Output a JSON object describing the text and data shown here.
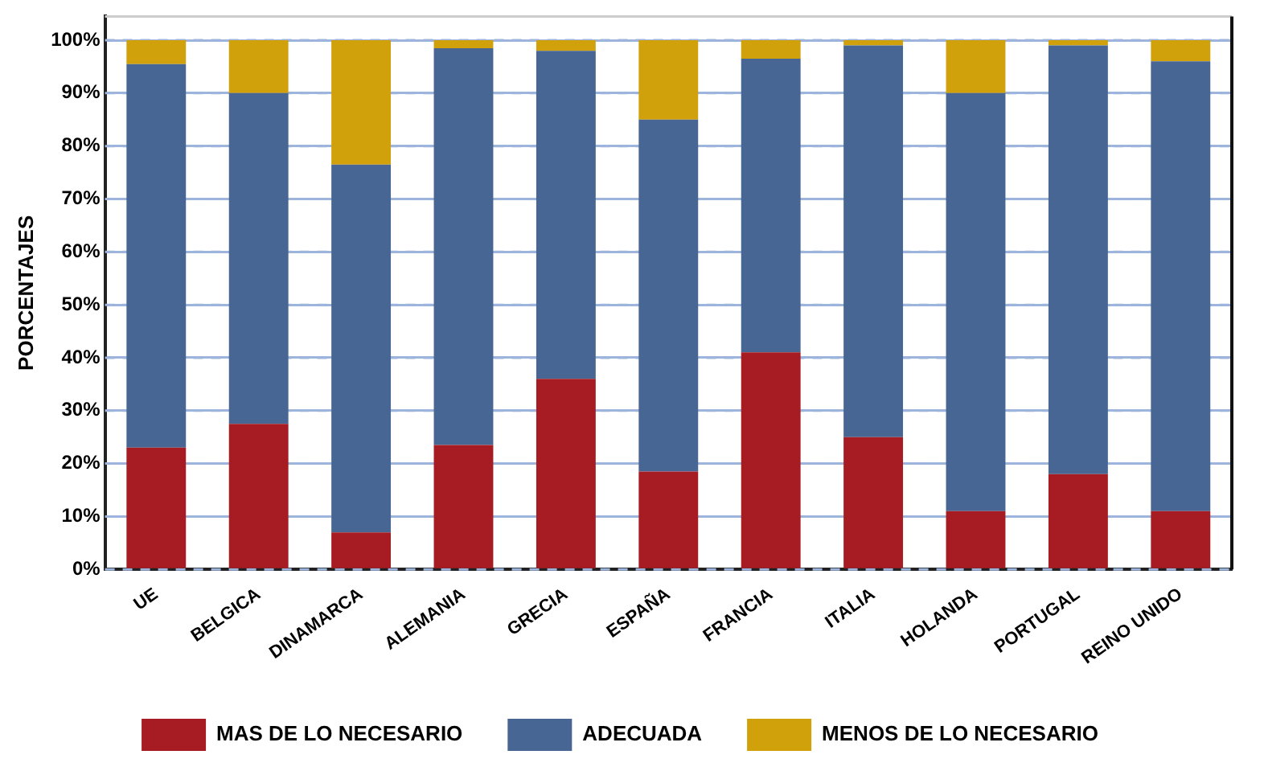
{
  "chart_data": {
    "type": "bar",
    "stacked": true,
    "ylabel": "PORCENTAJES",
    "categories": [
      "UE",
      "BELGICA",
      "DINAMARCA",
      "ALEMANIA",
      "GRECIA",
      "ESPAÑA",
      "FRANCIA",
      "ITALIA",
      "HOLANDA",
      "PORTUGAL",
      "REINO UNIDO"
    ],
    "series": [
      {
        "name": "MAS DE LO NECESARIO",
        "color": "#a61c22",
        "values": [
          23,
          27.5,
          7,
          23.5,
          36,
          18.5,
          41,
          25,
          11,
          18,
          11
        ]
      },
      {
        "name": "ADECUADA",
        "color": "#476693",
        "values": [
          72.5,
          62.5,
          69.5,
          75,
          62,
          66.5,
          55.5,
          74,
          79,
          81,
          85
        ]
      },
      {
        "name": "MENOS DE LO NECESARIO",
        "color": "#d0a10a",
        "values": [
          4.5,
          10,
          23.5,
          1.5,
          2,
          15,
          3.5,
          1,
          10,
          1,
          4
        ]
      }
    ],
    "ylim": [
      0,
      104.5
    ],
    "yticks": [
      {
        "value": 0,
        "label": "0%"
      },
      {
        "value": 10,
        "label": "10%"
      },
      {
        "value": 20,
        "label": "20%"
      },
      {
        "value": 30,
        "label": "30%"
      },
      {
        "value": 40,
        "label": "40%"
      },
      {
        "value": 50,
        "label": "50%"
      },
      {
        "value": 60,
        "label": "60%"
      },
      {
        "value": 70,
        "label": "70%"
      },
      {
        "value": 80,
        "label": "80%"
      },
      {
        "value": 90,
        "label": "90%"
      },
      {
        "value": 100,
        "label": "100%"
      }
    ],
    "grid": "y",
    "legend": "bottom"
  }
}
